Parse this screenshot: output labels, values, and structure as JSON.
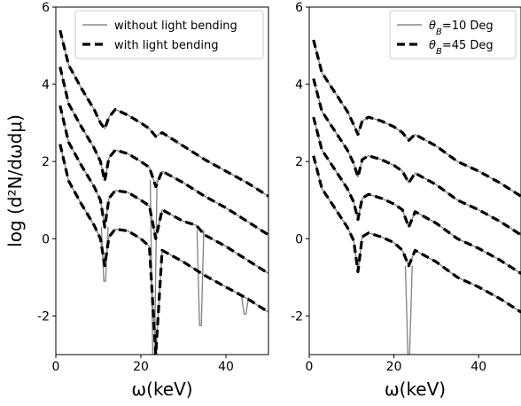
{
  "y_label": "log (d²N/dωdμ)",
  "chart_data": [
    {
      "type": "line",
      "xlabel": "ω(keV)",
      "ylabel": "log (d²N/dωdμ)",
      "xlim": [
        0,
        50
      ],
      "ylim": [
        -3,
        6
      ],
      "xticks": [
        "0",
        "20",
        "40"
      ],
      "yticks": [
        "-2",
        "0",
        "2",
        "4",
        "6"
      ],
      "legend_position": "top-right",
      "series": [
        {
          "name": "without light bending",
          "style": "thin solid",
          "color": "#888888"
        },
        {
          "name": "with light bending",
          "style": "thick dashed",
          "color": "#000000"
        }
      ],
      "curves": [
        {
          "offset": 2.0,
          "x": [
            1,
            3,
            6,
            9,
            10.5,
            11.5,
            12.5,
            14,
            17,
            20,
            22,
            23.5,
            25,
            30,
            35,
            40,
            45,
            50
          ],
          "y": [
            5.4,
            4.5,
            3.9,
            3.35,
            3.0,
            2.85,
            3.15,
            3.35,
            3.2,
            3.0,
            2.85,
            2.65,
            2.75,
            2.4,
            2.05,
            1.75,
            1.45,
            1.1
          ]
        },
        {
          "offset": 1.0,
          "x": [
            1,
            3,
            6,
            9,
            10.5,
            11.5,
            12.5,
            14,
            17,
            20,
            22,
            23.5,
            25,
            30,
            35,
            40,
            45,
            50
          ],
          "y": [
            4.45,
            3.5,
            2.9,
            2.35,
            2.0,
            1.5,
            2.1,
            2.3,
            2.2,
            2.0,
            1.85,
            1.35,
            1.75,
            1.45,
            1.1,
            0.8,
            0.45,
            0.1
          ]
        },
        {
          "offset": 0.0,
          "x": [
            1,
            3,
            6,
            9,
            10.5,
            11.5,
            12.5,
            14,
            17,
            20,
            22,
            23.5,
            25,
            30,
            33,
            35,
            40,
            45,
            50
          ],
          "y": [
            3.45,
            2.5,
            1.9,
            1.35,
            1.0,
            0.3,
            1.05,
            1.25,
            1.2,
            1.0,
            0.85,
            0.0,
            0.75,
            0.45,
            0.35,
            0.1,
            -0.2,
            -0.55,
            -0.9
          ]
        },
        {
          "offset": -1.0,
          "x": [
            1,
            3,
            6,
            9,
            10.5,
            11.5,
            12.5,
            14,
            17,
            20,
            22,
            23.5,
            25,
            30,
            35,
            40,
            45,
            50
          ],
          "y": [
            2.45,
            1.5,
            0.9,
            0.35,
            0.0,
            -0.7,
            0.05,
            0.25,
            0.2,
            0.0,
            -0.2,
            -3.0,
            -0.3,
            -0.6,
            -0.95,
            -1.25,
            -1.55,
            -1.9
          ]
        }
      ],
      "dips_without_bending": [
        {
          "x": 11.5,
          "curve": 2,
          "y": -1.1
        },
        {
          "x": 23,
          "curve": 1,
          "y": -3.0
        },
        {
          "x": 34,
          "curve": 2,
          "y": -2.25
        },
        {
          "x": 44.5,
          "curve": 3,
          "y": -1.95
        }
      ]
    },
    {
      "type": "line",
      "xlabel": "ω(keV)",
      "ylabel": "",
      "xlim": [
        0,
        50
      ],
      "ylim": [
        -3,
        6
      ],
      "xticks": [
        "0",
        "20",
        "40"
      ],
      "yticks": [
        "-2",
        "0",
        "2",
        "4",
        "6"
      ],
      "legend_position": "top-right",
      "series": [
        {
          "name": "θB=10 Deg",
          "legend_base": "θ",
          "legend_sub": "B",
          "legend_tail": "=10 Deg",
          "style": "thin solid",
          "color": "#888888"
        },
        {
          "name": "θB=45 Deg",
          "legend_base": "θ",
          "legend_sub": "B",
          "legend_tail": "=45 Deg",
          "style": "thick dashed",
          "color": "#000000"
        }
      ],
      "curves": [
        {
          "offset": 2.0,
          "x": [
            1,
            3,
            6,
            9,
            10.5,
            11.5,
            12.5,
            14,
            17,
            20,
            22,
            23.5,
            25,
            30,
            35,
            40,
            45,
            50
          ],
          "y": [
            5.15,
            4.3,
            3.8,
            3.3,
            2.95,
            2.7,
            3.05,
            3.15,
            3.05,
            2.9,
            2.75,
            2.55,
            2.7,
            2.4,
            2.0,
            1.75,
            1.45,
            1.1
          ]
        },
        {
          "offset": 1.0,
          "x": [
            1,
            3,
            6,
            9,
            10.5,
            11.5,
            12.5,
            14,
            17,
            20,
            22,
            23.5,
            25,
            30,
            35,
            40,
            45,
            50
          ],
          "y": [
            4.15,
            3.3,
            2.8,
            2.3,
            1.95,
            1.6,
            2.05,
            2.15,
            2.05,
            1.9,
            1.75,
            1.45,
            1.7,
            1.4,
            1.0,
            0.75,
            0.45,
            0.1
          ]
        },
        {
          "offset": 0.0,
          "x": [
            1,
            3,
            6,
            9,
            10.5,
            11.5,
            12.5,
            14,
            17,
            20,
            22,
            23.5,
            25,
            30,
            35,
            40,
            45,
            50
          ],
          "y": [
            3.15,
            2.3,
            1.8,
            1.3,
            0.95,
            0.5,
            1.05,
            1.15,
            1.05,
            0.9,
            0.75,
            0.3,
            0.7,
            0.4,
            0.0,
            -0.25,
            -0.55,
            -0.9
          ]
        },
        {
          "offset": -1.0,
          "x": [
            1,
            3,
            6,
            9,
            10.5,
            11.5,
            12.5,
            14,
            17,
            20,
            22,
            23.5,
            25,
            30,
            35,
            40,
            45,
            50
          ],
          "y": [
            2.15,
            1.3,
            0.8,
            0.3,
            -0.05,
            -0.85,
            0.05,
            0.15,
            0.05,
            -0.1,
            -0.3,
            -0.7,
            -0.3,
            -0.6,
            -1.0,
            -1.25,
            -1.55,
            -1.9
          ]
        }
      ],
      "dips_without_bending": [
        {
          "x": 23.5,
          "curve": 3,
          "y": -3.0
        }
      ]
    }
  ]
}
